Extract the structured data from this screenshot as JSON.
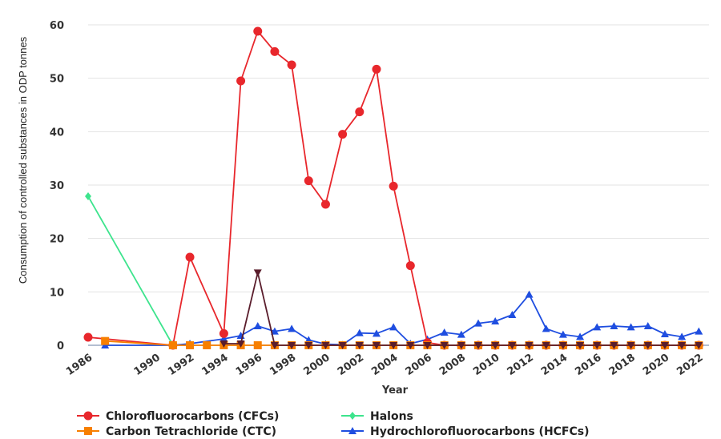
{
  "chart_data": {
    "type": "line",
    "xlabel": "Year",
    "ylabel": "Consumption of controlled substances in ODP tonnes",
    "ylim": [
      0,
      60
    ],
    "yticks": [
      0,
      10,
      20,
      30,
      40,
      50,
      60
    ],
    "xlim": [
      1986,
      2022.6
    ],
    "xtick_labels": [
      "1986",
      "1990",
      "1992",
      "1994",
      "1996",
      "1998",
      "2000",
      "2002",
      "2004",
      "2006",
      "2008",
      "2010",
      "2012",
      "2014",
      "2016",
      "2018",
      "2020",
      "2022"
    ],
    "grid": "horizontal",
    "legend_position": "bottom",
    "series": [
      {
        "name": "Chlorofluorocarbons (CFCs)",
        "color": "#e8272c",
        "marker": "circle",
        "points": [
          [
            1986,
            1.5
          ],
          [
            1991,
            0
          ],
          [
            1992,
            16.5
          ],
          [
            1994,
            2.2
          ],
          [
            1995,
            49.5
          ],
          [
            1996,
            58.8
          ],
          [
            1997,
            55
          ],
          [
            1998,
            52.5
          ],
          [
            1999,
            30.8
          ],
          [
            2000,
            26.4
          ],
          [
            2001,
            39.5
          ],
          [
            2002,
            43.7
          ],
          [
            2003,
            51.7
          ],
          [
            2004,
            29.8
          ],
          [
            2005,
            14.9
          ],
          [
            2006,
            0.5
          ],
          [
            2007,
            0
          ],
          [
            2008,
            0
          ],
          [
            2009,
            0
          ],
          [
            2010,
            0
          ],
          [
            2011,
            0
          ],
          [
            2012,
            0
          ],
          [
            2013,
            0
          ],
          [
            2014,
            0
          ],
          [
            2015,
            0
          ],
          [
            2016,
            0
          ],
          [
            2017,
            0
          ],
          [
            2018,
            0
          ],
          [
            2019,
            0
          ],
          [
            2020,
            0
          ],
          [
            2021,
            0
          ],
          [
            2022,
            0
          ]
        ]
      },
      {
        "name": "Halons",
        "color": "#3de48d",
        "marker": "diamond",
        "points": [
          [
            1986,
            27.9
          ],
          [
            1991,
            0
          ]
        ]
      },
      {
        "name": "Carbon Tetrachloride (CTC)",
        "color": "#f77f00",
        "marker": "square",
        "points": [
          [
            1987,
            0.8
          ],
          [
            1991,
            0
          ],
          [
            1992,
            0
          ],
          [
            1993,
            0
          ],
          [
            1994,
            0
          ],
          [
            1995,
            0
          ],
          [
            1996,
            0
          ],
          [
            1997,
            0
          ],
          [
            1998,
            0
          ],
          [
            1999,
            0
          ],
          [
            2000,
            0
          ],
          [
            2001,
            0
          ],
          [
            2002,
            0
          ],
          [
            2003,
            0
          ],
          [
            2004,
            0
          ],
          [
            2005,
            0
          ],
          [
            2006,
            0
          ],
          [
            2007,
            0
          ],
          [
            2008,
            0
          ],
          [
            2009,
            0
          ],
          [
            2010,
            0
          ],
          [
            2011,
            0
          ],
          [
            2012,
            0
          ],
          [
            2013,
            0
          ],
          [
            2014,
            0
          ],
          [
            2015,
            0
          ],
          [
            2016,
            0
          ],
          [
            2017,
            0
          ],
          [
            2018,
            0
          ],
          [
            2019,
            0
          ],
          [
            2020,
            0
          ],
          [
            2021,
            0
          ],
          [
            2022,
            0
          ]
        ]
      },
      {
        "name": "Hydrochlorofluorocarbons (HCFCs)",
        "color": "#1f4ee0",
        "marker": "triangle-up",
        "points": [
          [
            1987,
            0
          ],
          [
            1991,
            0
          ],
          [
            1992,
            0.3
          ],
          [
            1994,
            1.2
          ],
          [
            1995,
            1.8
          ],
          [
            1996,
            3.6
          ],
          [
            1997,
            2.6
          ],
          [
            1998,
            3.1
          ],
          [
            1999,
            1
          ],
          [
            2000,
            0.2
          ],
          [
            2001,
            0.1
          ],
          [
            2002,
            2.3
          ],
          [
            2003,
            2.2
          ],
          [
            2004,
            3.4
          ],
          [
            2005,
            0.3
          ],
          [
            2006,
            1.1
          ],
          [
            2007,
            2.4
          ],
          [
            2008,
            2
          ],
          [
            2009,
            4.1
          ],
          [
            2010,
            4.5
          ],
          [
            2011,
            5.7
          ],
          [
            2012,
            9.5
          ],
          [
            2013,
            3.1
          ],
          [
            2014,
            2
          ],
          [
            2015,
            1.6
          ],
          [
            2016,
            3.4
          ],
          [
            2017,
            3.6
          ],
          [
            2018,
            3.4
          ],
          [
            2019,
            3.6
          ],
          [
            2020,
            2.1
          ],
          [
            2021,
            1.6
          ],
          [
            2022,
            2.6
          ]
        ]
      },
      {
        "color": "#5a1d2c",
        "marker": "triangle-down",
        "points": [
          [
            1994,
            0.3
          ],
          [
            1995,
            0.3
          ],
          [
            1996,
            13.6
          ],
          [
            1997,
            0
          ],
          [
            1998,
            0
          ],
          [
            1999,
            0
          ],
          [
            2000,
            0
          ],
          [
            2001,
            0
          ],
          [
            2002,
            0
          ],
          [
            2003,
            0
          ],
          [
            2004,
            0
          ],
          [
            2005,
            0
          ],
          [
            2006,
            0
          ],
          [
            2007,
            0
          ],
          [
            2008,
            0
          ],
          [
            2009,
            0
          ],
          [
            2010,
            0
          ],
          [
            2011,
            0
          ],
          [
            2012,
            0
          ],
          [
            2013,
            0
          ],
          [
            2014,
            0
          ],
          [
            2015,
            0
          ],
          [
            2016,
            0
          ],
          [
            2017,
            0
          ],
          [
            2018,
            0
          ],
          [
            2019,
            0
          ],
          [
            2020,
            0
          ],
          [
            2021,
            0
          ],
          [
            2022,
            0
          ]
        ]
      }
    ],
    "legend": [
      {
        "label": "Chlorofluorocarbons (CFCs)",
        "series": 0
      },
      {
        "label": "Halons",
        "series": 1
      },
      {
        "label": "Carbon Tetrachloride (CTC)",
        "series": 2
      },
      {
        "label": "Hydrochlorofluorocarbons (HCFCs)",
        "series": 3
      }
    ]
  }
}
